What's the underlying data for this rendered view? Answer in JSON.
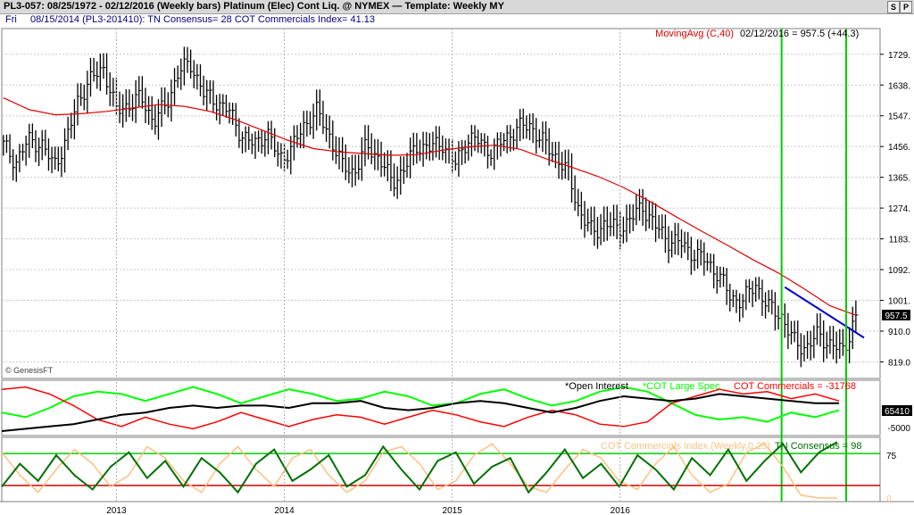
{
  "title": "PL3-057:  08/25/1972 - 02/12/2016  (Weekly bars)   Platinum (Elec) Cont Liq. @ NYMEX  —  Template: Weekly MY",
  "toolbar": {
    "s_label": "S",
    "p_label": "P"
  },
  "info": {
    "day": "Fri",
    "text": "08/15/2014 (PL3-201410):  TN Consensus= 28  COT Commercials Index= 41.13"
  },
  "colors": {
    "bars": "#000000",
    "moving_avg": "#e00000",
    "trendline": "#0000cc",
    "vline": "#00cc00",
    "open_interest": "#000000",
    "cot_large_spec": "#00ff00",
    "cot_commercials": "#ff0000",
    "cot_index": "#ffc080",
    "tn_consensus": "#007000",
    "ref_green": "#00cc00",
    "ref_red": "#cc0000"
  },
  "chart_data": [
    {
      "type": "ohlc",
      "pane": "price",
      "title": "",
      "y_ticks": [
        819.0,
        910.0,
        1001.0,
        1092.0,
        1183.0,
        1274.0,
        1365.0,
        1456.0,
        1547.0,
        1638.0,
        1729.0
      ],
      "y_tick_labels": [
        "819.0",
        "910.0",
        "1001.",
        "1092.",
        "1183.",
        "1274.",
        "1365.",
        "1456.",
        "1547.",
        "1638.",
        "1729."
      ],
      "ylim": [
        770,
        1805
      ],
      "x_ticks": [
        "2013",
        "2014",
        "2015",
        "2016"
      ],
      "last_price_label": "957.5",
      "watermark": "© GenesisFT",
      "moving_avg_label": "MovingAvg (C,40)",
      "readout": "02/12/2016 = 957.5 (+44.3)",
      "close_anchors": [
        1460,
        1410,
        1475,
        1465,
        1400,
        1470,
        1600,
        1655,
        1690,
        1560,
        1580,
        1600,
        1530,
        1580,
        1680,
        1700,
        1610,
        1590,
        1560,
        1490,
        1460,
        1500,
        1420,
        1450,
        1520,
        1560,
        1490,
        1400,
        1380,
        1460,
        1420,
        1350,
        1390,
        1460,
        1450,
        1470,
        1400,
        1480,
        1470,
        1440,
        1480,
        1510,
        1520,
        1470,
        1430,
        1380,
        1260,
        1200,
        1230,
        1210,
        1240,
        1280,
        1220,
        1180,
        1170,
        1140,
        1120,
        1080,
        1010,
        1000,
        1050,
        980,
        960,
        880,
        860,
        900,
        870,
        850,
        957.5
      ],
      "moving_avg": [
        1600,
        1565,
        1550,
        1553,
        1560,
        1570,
        1580,
        1575,
        1560,
        1535,
        1505,
        1475,
        1450,
        1440,
        1435,
        1430,
        1432,
        1445,
        1455,
        1460,
        1448,
        1420,
        1395,
        1368,
        1335,
        1295,
        1250,
        1207,
        1165,
        1122,
        1082,
        1035,
        985,
        957
      ],
      "moving_avg_weeks": [
        0,
        8,
        16,
        24,
        32,
        40,
        48,
        56,
        64,
        72,
        80,
        88,
        96,
        104,
        112,
        120,
        128,
        136,
        144,
        152,
        160,
        168,
        176,
        184,
        192,
        200,
        208,
        216,
        224,
        232,
        240,
        248,
        256,
        264
      ],
      "trendline": {
        "from": {
          "week": 242,
          "value": 1040
        },
        "to": {
          "week": 265,
          "value": 930
        }
      },
      "vlines_week": [
        241,
        261
      ]
    },
    {
      "type": "line",
      "pane": "cot",
      "title": "",
      "series_labels": {
        "open_interest": "*Open Interest",
        "cot_large_spec": "*COT Large Spec",
        "cot_commercials": "COT Commercials = -31768"
      },
      "y_tick_labels": [
        "65410",
        "-5000"
      ],
      "open_interest": [
        -1.0,
        -0.9,
        -0.8,
        -0.7,
        -0.5,
        -0.3,
        -0.2,
        0.0,
        0.1,
        0.0,
        0.1,
        0.1,
        0.0,
        0.2,
        0.2,
        0.3,
        0.0,
        -0.1,
        0.0,
        0.2,
        0.3,
        0.2,
        0.0,
        -0.2,
        0.0,
        0.3,
        0.5,
        0.4,
        0.3,
        0.4,
        0.6,
        0.5,
        0.4,
        0.3,
        0.2,
        0.2
      ],
      "cot_large_spec": [
        -0.2,
        -0.4,
        0.0,
        0.5,
        0.7,
        0.6,
        0.3,
        0.6,
        0.9,
        0.6,
        0.2,
        0.5,
        0.8,
        0.6,
        0.3,
        0.4,
        0.7,
        0.5,
        0.1,
        0.2,
        0.6,
        0.8,
        0.4,
        0.1,
        0.3,
        0.7,
        0.9,
        0.7,
        0.2,
        -0.3,
        -0.5,
        -0.4,
        -0.6,
        -0.2,
        -0.4,
        -0.1
      ],
      "cot_commercials": [
        0.8,
        0.9,
        0.6,
        0.1,
        -0.5,
        -0.8,
        -0.4,
        -0.7,
        -0.9,
        -0.6,
        -0.2,
        -0.5,
        -0.8,
        -0.5,
        -0.3,
        -0.4,
        -0.7,
        -0.4,
        -0.1,
        -0.3,
        -0.6,
        -0.8,
        -0.4,
        -0.1,
        -0.3,
        -0.7,
        -0.8,
        -0.6,
        0.2,
        0.5,
        0.8,
        0.6,
        0.7,
        0.4,
        0.6,
        0.3
      ]
    },
    {
      "type": "line",
      "pane": "index",
      "title": "",
      "series_labels": {
        "cot_index": "COT Commercials Index (Weekly,0.25)",
        "tn_consensus": "TN Consensus = 98"
      },
      "ylim": [
        0,
        100
      ],
      "y_ticks": [
        0,
        75
      ],
      "reference_lines": [
        78,
        22
      ],
      "cot_index": [
        80,
        40,
        10,
        50,
        85,
        60,
        20,
        40,
        90,
        70,
        30,
        10,
        60,
        90,
        50,
        20,
        70,
        85,
        40,
        10,
        30,
        80,
        90,
        60,
        15,
        30,
        75,
        95,
        60,
        20,
        10,
        50,
        85,
        70,
        30,
        15,
        60,
        90,
        40,
        10,
        25,
        80,
        95,
        55,
        5,
        0,
        0
      ],
      "tn_consensus": [
        20,
        60,
        30,
        75,
        40,
        15,
        55,
        80,
        35,
        65,
        20,
        70,
        45,
        10,
        60,
        85,
        30,
        50,
        75,
        20,
        40,
        90,
        50,
        15,
        65,
        80,
        25,
        55,
        70,
        10,
        45,
        85,
        35,
        60,
        20,
        75,
        50,
        15,
        70,
        40,
        85,
        30,
        65,
        95,
        45,
        80,
        98
      ]
    }
  ]
}
